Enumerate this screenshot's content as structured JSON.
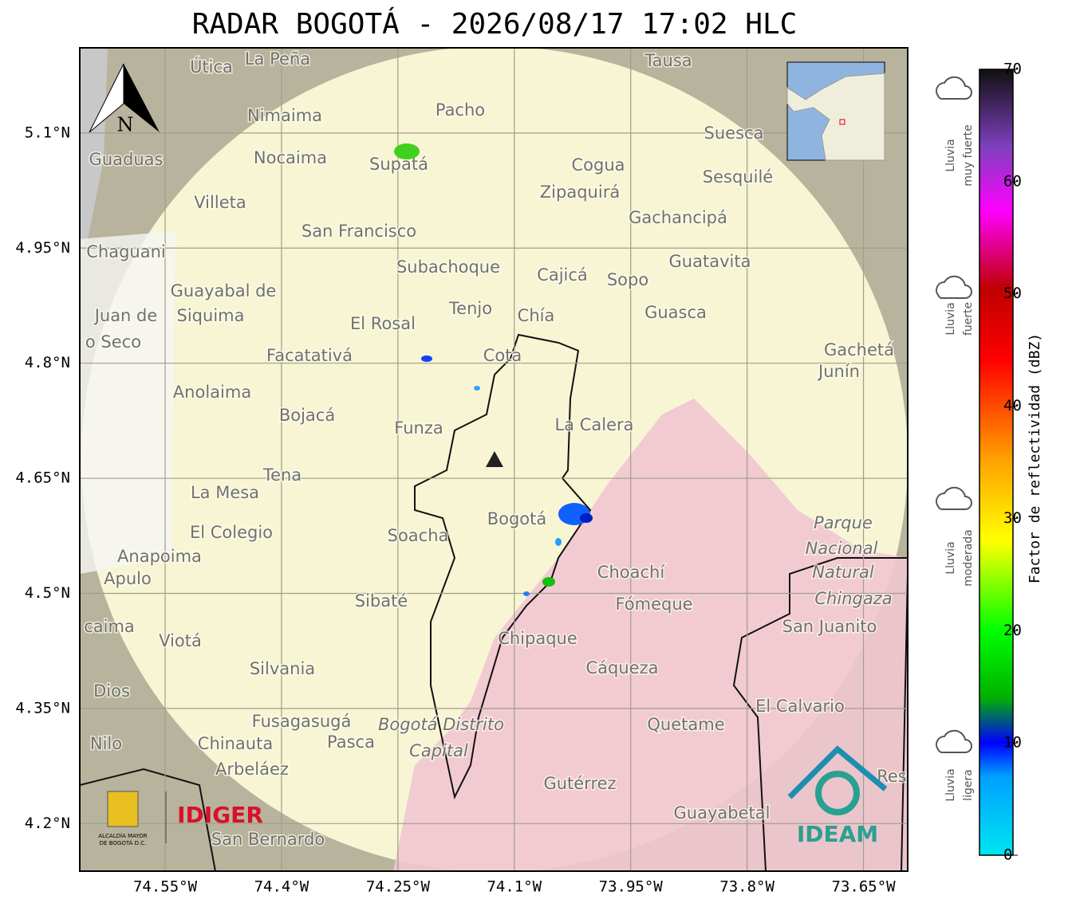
{
  "title": "RADAR BOGOTÁ - 2026/08/17 17:02 HLC",
  "map": {
    "latlim": [
      4.138,
      5.211
    ],
    "lonlim": [
      -74.66,
      -73.593
    ],
    "lat_ticks": [
      {
        "value": 5.1,
        "label": "5.1°N"
      },
      {
        "value": 4.95,
        "label": "4.95°N"
      },
      {
        "value": 4.8,
        "label": "4.8°N"
      },
      {
        "value": 4.65,
        "label": "4.65°N"
      },
      {
        "value": 4.5,
        "label": "4.5°N"
      },
      {
        "value": 4.35,
        "label": "4.35°N"
      },
      {
        "value": 4.2,
        "label": "4.2°N"
      }
    ],
    "lon_ticks": [
      {
        "value": -74.55,
        "label": "74.55°W"
      },
      {
        "value": -74.4,
        "label": "74.4°W"
      },
      {
        "value": -74.25,
        "label": "74.25°W"
      },
      {
        "value": -74.1,
        "label": "74.1°W"
      },
      {
        "value": -73.95,
        "label": "73.95°W"
      },
      {
        "value": -73.8,
        "label": "73.8°W"
      },
      {
        "value": -73.65,
        "label": "73.65°W"
      }
    ],
    "places": [
      "La Peña",
      "Útica",
      "Tausa",
      "Pacho",
      "Nimaima",
      "Suesca",
      "Guaduas",
      "Nocaima",
      "Supatá",
      "Cogua",
      "Sesquilé",
      "Zipaquirá",
      "Villeta",
      "Gachancipá",
      "San Francisco",
      "Chaguani",
      "Guatavita",
      "Subachoque",
      "Cajicá",
      "Sopo",
      "Guayabal de",
      "Siquima",
      "Tenjo",
      "Chía",
      "Guasca",
      "Juan de",
      "El Rosal",
      "o Seco",
      "Facatativá",
      "Cota",
      "Gachetá",
      "Junín",
      "Anolaima",
      "Bojacá",
      "Funza",
      "La Calera",
      "Tena",
      "La Mesa",
      "Parque",
      "Bogotá",
      "El Colegio",
      "Soacha",
      "Nacional",
      "Anapoima",
      "Apulo",
      "Choachí",
      "Natural",
      "Chingaza",
      "Fómeque",
      "Sibaté",
      "San Juanito",
      "caima",
      "Viotá",
      "Chipaque",
      "Cáqueza",
      "Silvania",
      "Dios",
      "El Calvario",
      "Fusagasugá",
      "Bogotá Distrito",
      "Quetame",
      "Nilo",
      "Chinauta",
      "Pasca",
      "Capital",
      "Arbeláez",
      "Res",
      "Gutérrez",
      "Guayabetal",
      "San Bernardo"
    ],
    "north": "N"
  },
  "colorbar": {
    "label": "Factor de reflectividad (dBZ)",
    "range": [
      0,
      70
    ],
    "ticks": [
      0,
      10,
      20,
      30,
      40,
      50,
      60,
      70
    ]
  },
  "rain_levels": [
    {
      "lines": [
        "Lluvia",
        "muy fuerte"
      ]
    },
    {
      "lines": [
        "Lluvia",
        "fuerte"
      ]
    },
    {
      "lines": [
        "Lluvia",
        "moderada"
      ]
    },
    {
      "lines": [
        "Lluvia",
        "ligera"
      ]
    }
  ],
  "logos": {
    "alcaldia": [
      "ALCALDÍA MAYOR",
      "DE BOGOTÁ D.C."
    ],
    "idiger": "IDIGER",
    "ideam": "IDEAM"
  }
}
